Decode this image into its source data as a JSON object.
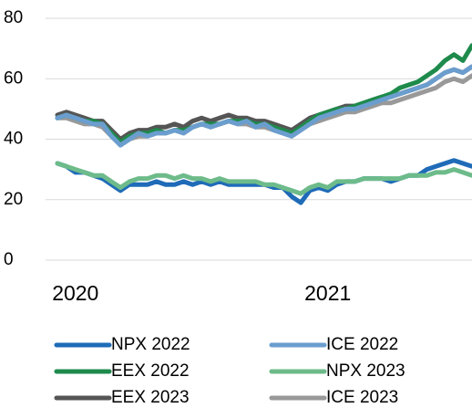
{
  "chart_data": {
    "type": "line",
    "categories": [
      null,
      null,
      "2020",
      null,
      null,
      null,
      null,
      null,
      null,
      null,
      null,
      null,
      null,
      null,
      null,
      null,
      null,
      null,
      null,
      null,
      null,
      null,
      null,
      null,
      null,
      null,
      null,
      null,
      null,
      null,
      "2021",
      null,
      null,
      null,
      null,
      null,
      null,
      null,
      null,
      null,
      null,
      null,
      null,
      null,
      null,
      null,
      null
    ],
    "series": [
      {
        "name": "EEX 2023",
        "color": "#555555",
        "values": [
          48,
          49,
          48,
          47,
          46,
          46,
          43,
          40,
          42,
          43,
          43,
          44,
          44,
          45,
          44,
          46,
          47,
          46,
          47,
          48,
          47,
          47,
          46,
          46,
          45,
          44,
          43,
          45,
          47,
          48,
          49,
          50,
          51,
          51,
          52,
          53,
          54,
          54,
          55,
          56,
          57,
          58,
          60,
          62,
          63,
          62,
          64
        ]
      },
      {
        "name": "ICE 2023",
        "color": "#999999",
        "values": [
          47,
          47,
          46,
          45,
          45,
          44,
          41,
          38,
          40,
          41,
          41,
          42,
          42,
          43,
          42,
          44,
          45,
          44,
          45,
          46,
          45,
          45,
          44,
          44,
          43,
          42,
          41,
          43,
          45,
          46,
          47,
          48,
          49,
          49,
          50,
          51,
          52,
          52,
          53,
          54,
          55,
          56,
          57,
          59,
          60,
          59,
          61
        ]
      },
      {
        "name": "EEX 2022",
        "color": "#1e8a4c",
        "values": [
          47,
          48,
          47,
          46,
          46,
          45,
          42,
          39,
          41,
          42,
          42,
          43,
          42,
          43,
          43,
          44,
          45,
          45,
          45,
          46,
          46,
          46,
          45,
          45,
          44,
          43,
          42,
          44,
          46,
          48,
          49,
          50,
          50,
          51,
          52,
          53,
          54,
          55,
          57,
          58,
          59,
          61,
          63,
          66,
          68,
          66,
          71
        ]
      },
      {
        "name": "ICE 2022",
        "color": "#6b9ecf",
        "values": [
          47,
          48,
          47,
          46,
          45,
          45,
          41,
          38,
          40,
          42,
          41,
          42,
          42,
          43,
          42,
          44,
          45,
          44,
          45,
          46,
          45,
          46,
          44,
          45,
          43,
          42,
          41,
          43,
          45,
          47,
          48,
          49,
          50,
          50,
          51,
          52,
          53,
          54,
          55,
          56,
          57,
          58,
          60,
          62,
          63,
          62,
          64
        ]
      },
      {
        "name": "NPX 2022",
        "color": "#1f6bb8",
        "values": [
          32,
          31,
          29,
          29,
          28,
          27,
          25,
          23,
          25,
          25,
          25,
          26,
          25,
          25,
          26,
          25,
          26,
          25,
          26,
          25,
          25,
          25,
          25,
          25,
          24,
          24,
          21,
          19,
          23,
          24,
          23,
          25,
          26,
          26,
          27,
          27,
          27,
          26,
          27,
          28,
          28,
          30,
          31,
          32,
          33,
          32,
          31
        ]
      },
      {
        "name": "NPX 2023",
        "color": "#6dbb8a",
        "values": [
          32,
          31,
          30,
          29,
          28,
          28,
          26,
          24,
          26,
          27,
          27,
          28,
          28,
          27,
          28,
          27,
          27,
          26,
          27,
          26,
          26,
          26,
          26,
          25,
          25,
          24,
          23,
          22,
          24,
          25,
          24,
          26,
          26,
          26,
          27,
          27,
          27,
          27,
          27,
          28,
          28,
          28,
          29,
          29,
          30,
          29,
          28
        ]
      }
    ],
    "ylim": [
      0,
      80
    ],
    "yticks": [
      0,
      20,
      40,
      60,
      80
    ],
    "grid": true
  }
}
